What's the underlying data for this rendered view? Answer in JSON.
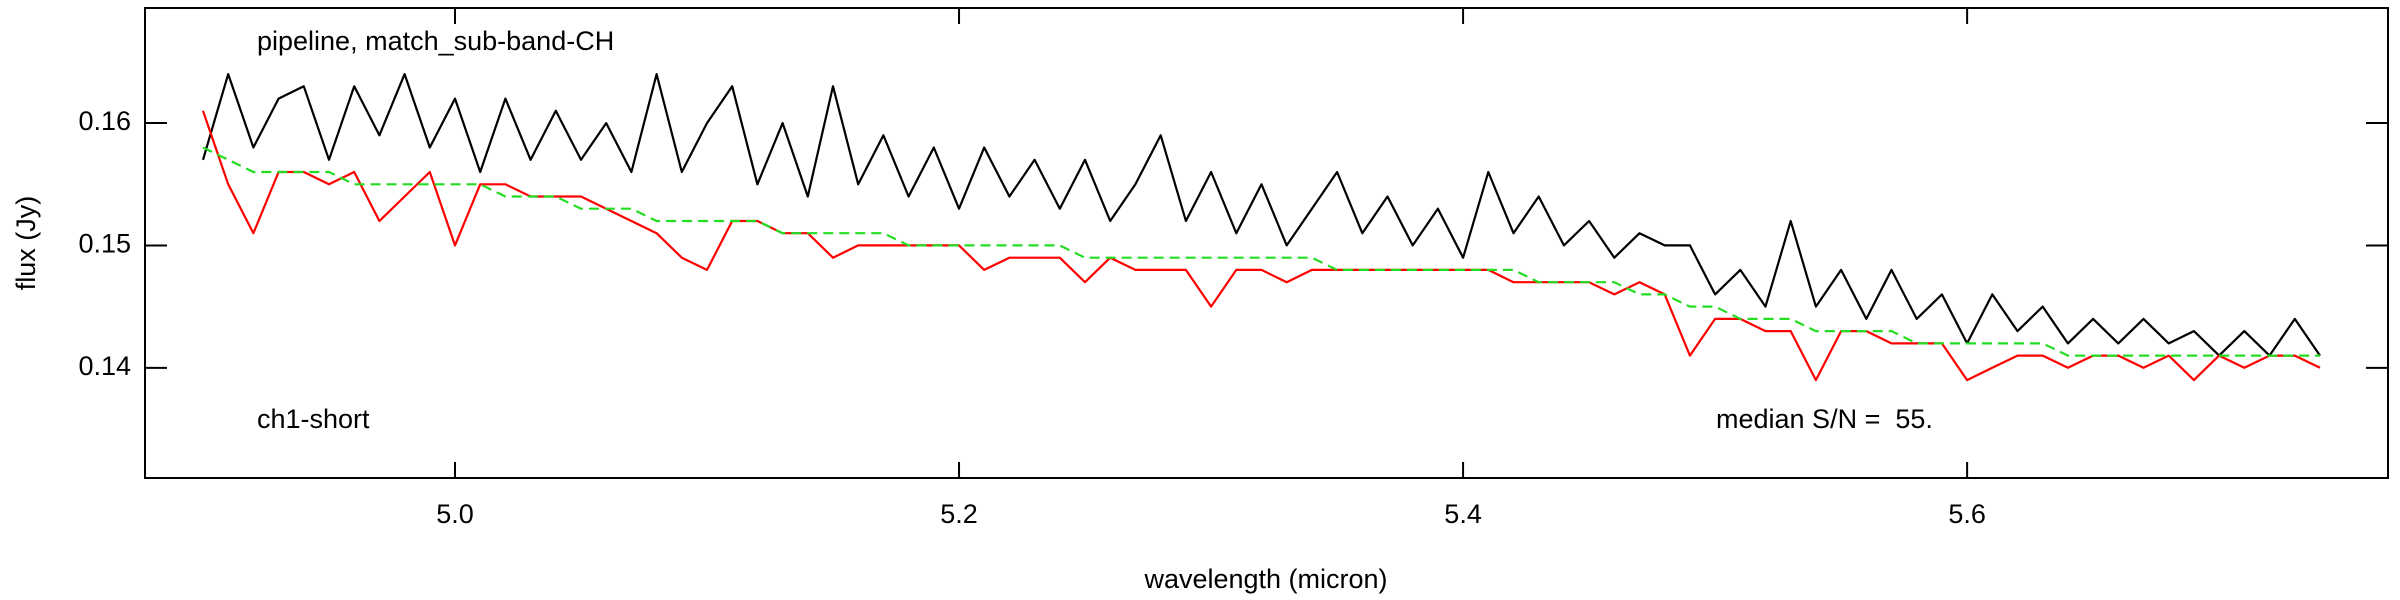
{
  "chart_data": {
    "type": "line",
    "title": null,
    "annotations": [
      "pipeline, match_sub-band-CH",
      "ch1-short",
      "median S/N =  55."
    ],
    "xlabel": "wavelength (micron)",
    "ylabel": "flux (Jy)",
    "x": [
      4.9,
      4.91,
      4.92,
      4.93,
      4.94,
      4.95,
      4.96,
      4.97,
      4.98,
      4.99,
      5.0,
      5.01,
      5.02,
      5.03,
      5.04,
      5.05,
      5.06,
      5.07,
      5.08,
      5.09,
      5.1,
      5.11,
      5.12,
      5.13,
      5.14,
      5.15,
      5.16,
      5.17,
      5.18,
      5.19,
      5.2,
      5.21,
      5.22,
      5.23,
      5.24,
      5.25,
      5.26,
      5.27,
      5.28,
      5.29,
      5.3,
      5.31,
      5.32,
      5.33,
      5.34,
      5.35,
      5.36,
      5.37,
      5.38,
      5.39,
      5.4,
      5.41,
      5.42,
      5.43,
      5.44,
      5.45,
      5.46,
      5.47,
      5.48,
      5.49,
      5.5,
      5.51,
      5.52,
      5.53,
      5.54,
      5.55,
      5.56,
      5.57,
      5.58,
      5.59,
      5.6,
      5.61,
      5.62,
      5.63,
      5.64,
      5.65,
      5.66,
      5.67,
      5.68,
      5.69,
      5.7,
      5.71,
      5.72,
      5.73,
      5.74
    ],
    "series": [
      {
        "color": "#000000",
        "dash": false,
        "values": [
          0.157,
          0.164,
          0.158,
          0.162,
          0.163,
          0.157,
          0.163,
          0.159,
          0.164,
          0.158,
          0.162,
          0.156,
          0.162,
          0.157,
          0.161,
          0.157,
          0.16,
          0.156,
          0.164,
          0.156,
          0.16,
          0.163,
          0.155,
          0.16,
          0.154,
          0.163,
          0.155,
          0.159,
          0.154,
          0.158,
          0.153,
          0.158,
          0.154,
          0.157,
          0.153,
          0.157,
          0.152,
          0.155,
          0.159,
          0.152,
          0.156,
          0.151,
          0.155,
          0.15,
          0.153,
          0.156,
          0.151,
          0.154,
          0.15,
          0.153,
          0.149,
          0.156,
          0.151,
          0.154,
          0.15,
          0.152,
          0.149,
          0.151,
          0.15,
          0.15,
          0.146,
          0.148,
          0.145,
          0.152,
          0.145,
          0.148,
          0.144,
          0.148,
          0.144,
          0.146,
          0.142,
          0.146,
          0.143,
          0.145,
          0.142,
          0.144,
          0.142,
          0.144,
          0.142,
          0.143,
          0.141,
          0.143,
          0.141,
          0.144,
          0.141
        ]
      },
      {
        "color": "#ff0000",
        "dash": false,
        "values": [
          0.161,
          0.155,
          0.151,
          0.156,
          0.156,
          0.155,
          0.156,
          0.152,
          0.154,
          0.156,
          0.15,
          0.155,
          0.155,
          0.154,
          0.154,
          0.154,
          0.153,
          0.152,
          0.151,
          0.149,
          0.148,
          0.152,
          0.152,
          0.151,
          0.151,
          0.149,
          0.15,
          0.15,
          0.15,
          0.15,
          0.15,
          0.148,
          0.149,
          0.149,
          0.149,
          0.147,
          0.149,
          0.148,
          0.148,
          0.148,
          0.145,
          0.148,
          0.148,
          0.147,
          0.148,
          0.148,
          0.148,
          0.148,
          0.148,
          0.148,
          0.148,
          0.148,
          0.147,
          0.147,
          0.147,
          0.147,
          0.146,
          0.147,
          0.146,
          0.141,
          0.144,
          0.144,
          0.143,
          0.143,
          0.139,
          0.143,
          0.143,
          0.142,
          0.142,
          0.142,
          0.139,
          0.14,
          0.141,
          0.141,
          0.14,
          0.141,
          0.141,
          0.14,
          0.141,
          0.139,
          0.141,
          0.14,
          0.141,
          0.141,
          0.14
        ]
      },
      {
        "color": "#22dd22",
        "dash": true,
        "values": [
          0.158,
          0.157,
          0.156,
          0.156,
          0.156,
          0.156,
          0.155,
          0.155,
          0.155,
          0.155,
          0.155,
          0.155,
          0.154,
          0.154,
          0.154,
          0.153,
          0.153,
          0.153,
          0.152,
          0.152,
          0.152,
          0.152,
          0.152,
          0.151,
          0.151,
          0.151,
          0.151,
          0.151,
          0.15,
          0.15,
          0.15,
          0.15,
          0.15,
          0.15,
          0.15,
          0.149,
          0.149,
          0.149,
          0.149,
          0.149,
          0.149,
          0.149,
          0.149,
          0.149,
          0.149,
          0.148,
          0.148,
          0.148,
          0.148,
          0.148,
          0.148,
          0.148,
          0.148,
          0.147,
          0.147,
          0.147,
          0.147,
          0.146,
          0.146,
          0.145,
          0.145,
          0.144,
          0.144,
          0.144,
          0.143,
          0.143,
          0.143,
          0.143,
          0.142,
          0.142,
          0.142,
          0.142,
          0.142,
          0.142,
          0.141,
          0.141,
          0.141,
          0.141,
          0.141,
          0.141,
          0.141,
          0.141,
          0.141,
          0.141,
          0.141
        ]
      }
    ],
    "xlim": [
      4.877,
      5.767
    ],
    "ylim": [
      0.131,
      0.1694
    ],
    "xticks": [
      {
        "value": 5.0,
        "label": "5.0"
      },
      5.2,
      5.4,
      5.6
    ],
    "yticks": [
      0.14,
      0.15,
      0.16
    ],
    "grid": false
  }
}
